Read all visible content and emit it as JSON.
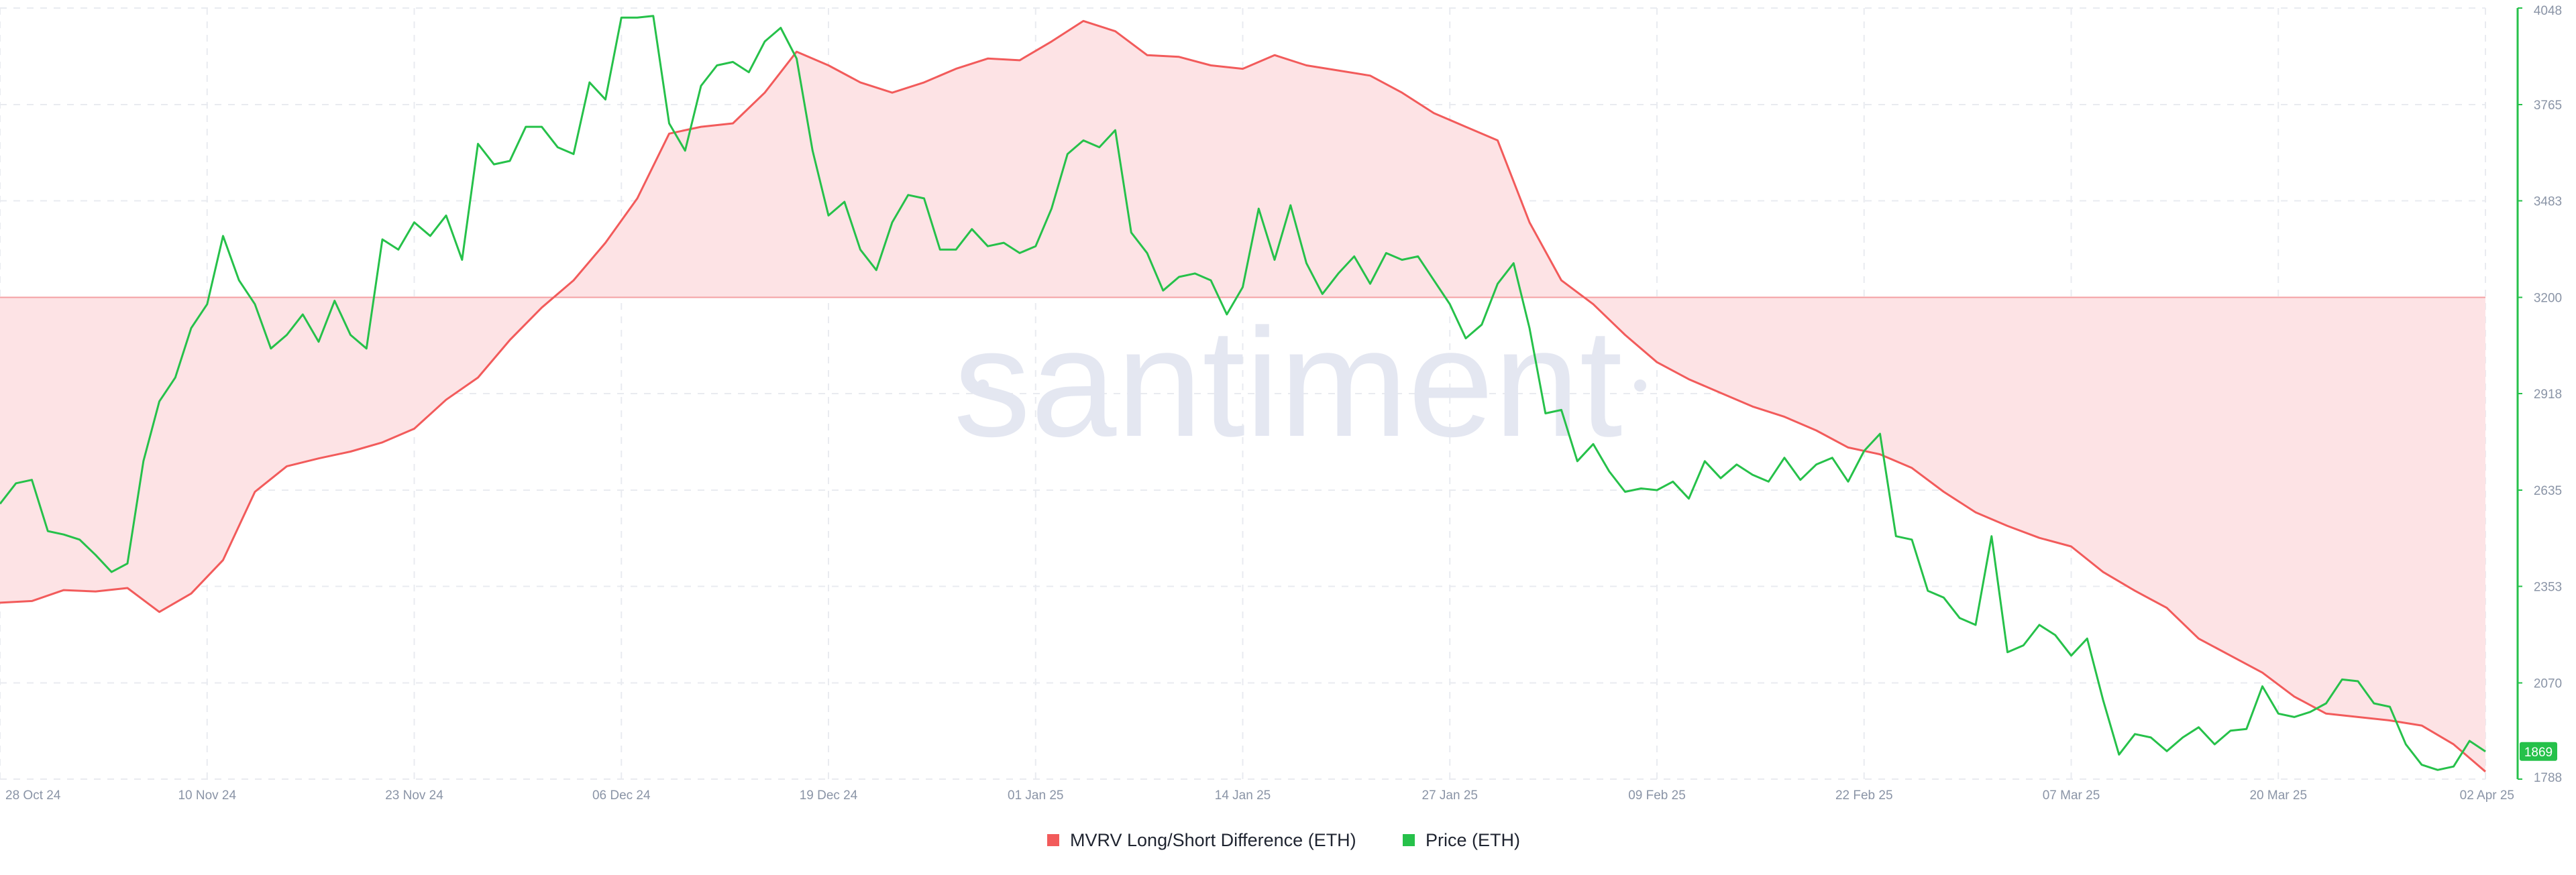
{
  "watermark": "santiment",
  "chart_data": {
    "type": "line",
    "title": "",
    "xlabel": "",
    "ylabel": "",
    "x_ticks": [
      "28 Oct 24",
      "10 Nov 24",
      "23 Nov 24",
      "06 Dec 24",
      "19 Dec 24",
      "01 Jan 25",
      "14 Jan 25",
      "27 Jan 25",
      "09 Feb 25",
      "22 Feb 25",
      "07 Mar 25",
      "20 Mar 25",
      "02 Apr 25"
    ],
    "x_range": [
      "2024-10-28",
      "2025-04-02"
    ],
    "price_axis": {
      "ticks": [
        1788,
        2070,
        2353,
        2635,
        2918,
        3200,
        3483,
        3765,
        4048
      ],
      "ylim": [
        1788,
        4048
      ]
    },
    "current_price_label": "1869",
    "legend_position": "bottom-center",
    "grid": true,
    "series": [
      {
        "name": "MVRV Long/Short Difference (ETH)",
        "color": "#f25b5b",
        "fill": "#fde3e5",
        "baseline": 3200,
        "values": [
          [
            "2024-10-28",
            2305
          ],
          [
            "2024-10-30",
            2310
          ],
          [
            "2024-11-01",
            2342
          ],
          [
            "2024-11-03",
            2338
          ],
          [
            "2024-11-05",
            2348
          ],
          [
            "2024-11-07",
            2278
          ],
          [
            "2024-11-09",
            2332
          ],
          [
            "2024-11-11",
            2430
          ],
          [
            "2024-11-13",
            2630
          ],
          [
            "2024-11-15",
            2705
          ],
          [
            "2024-11-17",
            2728
          ],
          [
            "2024-11-19",
            2748
          ],
          [
            "2024-11-21",
            2775
          ],
          [
            "2024-11-23",
            2815
          ],
          [
            "2024-11-25",
            2900
          ],
          [
            "2024-11-27",
            2965
          ],
          [
            "2024-11-29",
            3075
          ],
          [
            "2024-12-01",
            3170
          ],
          [
            "2024-12-03",
            3250
          ],
          [
            "2024-12-05",
            3360
          ],
          [
            "2024-12-07",
            3490
          ],
          [
            "2024-12-09",
            3680
          ],
          [
            "2024-12-11",
            3700
          ],
          [
            "2024-12-13",
            3710
          ],
          [
            "2024-12-15",
            3800
          ],
          [
            "2024-12-17",
            3920
          ],
          [
            "2024-12-19",
            3880
          ],
          [
            "2024-12-21",
            3830
          ],
          [
            "2024-12-23",
            3800
          ],
          [
            "2024-12-25",
            3830
          ],
          [
            "2024-12-27",
            3870
          ],
          [
            "2024-12-29",
            3900
          ],
          [
            "2024-12-31",
            3895
          ],
          [
            "2025-01-02",
            3950
          ],
          [
            "2025-01-04",
            4010
          ],
          [
            "2025-01-06",
            3980
          ],
          [
            "2025-01-08",
            3910
          ],
          [
            "2025-01-10",
            3905
          ],
          [
            "2025-01-12",
            3880
          ],
          [
            "2025-01-14",
            3870
          ],
          [
            "2025-01-16",
            3910
          ],
          [
            "2025-01-18",
            3880
          ],
          [
            "2025-01-20",
            3865
          ],
          [
            "2025-01-22",
            3850
          ],
          [
            "2025-01-24",
            3800
          ],
          [
            "2025-01-26",
            3740
          ],
          [
            "2025-01-28",
            3700
          ],
          [
            "2025-01-30",
            3660
          ],
          [
            "2025-02-01",
            3420
          ],
          [
            "2025-02-03",
            3250
          ],
          [
            "2025-02-05",
            3180
          ],
          [
            "2025-02-07",
            3090
          ],
          [
            "2025-02-09",
            3010
          ],
          [
            "2025-02-11",
            2960
          ],
          [
            "2025-02-13",
            2920
          ],
          [
            "2025-02-15",
            2880
          ],
          [
            "2025-02-17",
            2850
          ],
          [
            "2025-02-19",
            2810
          ],
          [
            "2025-02-21",
            2760
          ],
          [
            "2025-02-23",
            2740
          ],
          [
            "2025-02-25",
            2700
          ],
          [
            "2025-02-27",
            2630
          ],
          [
            "2025-03-01",
            2570
          ],
          [
            "2025-03-03",
            2530
          ],
          [
            "2025-03-05",
            2495
          ],
          [
            "2025-03-07",
            2470
          ],
          [
            "2025-03-09",
            2395
          ],
          [
            "2025-03-11",
            2340
          ],
          [
            "2025-03-13",
            2290
          ],
          [
            "2025-03-15",
            2200
          ],
          [
            "2025-03-17",
            2150
          ],
          [
            "2025-03-19",
            2100
          ],
          [
            "2025-03-21",
            2030
          ],
          [
            "2025-03-23",
            1980
          ],
          [
            "2025-03-25",
            1970
          ],
          [
            "2025-03-27",
            1960
          ],
          [
            "2025-03-29",
            1945
          ],
          [
            "2025-03-31",
            1890
          ],
          [
            "2025-04-02",
            1810
          ]
        ]
      },
      {
        "name": "Price (ETH)",
        "color": "#26c14a",
        "values": [
          [
            "2024-10-28",
            2595
          ],
          [
            "2024-10-29",
            2655
          ],
          [
            "2024-10-30",
            2665
          ],
          [
            "2024-10-31",
            2515
          ],
          [
            "2024-11-01",
            2505
          ],
          [
            "2024-11-02",
            2490
          ],
          [
            "2024-11-03",
            2445
          ],
          [
            "2024-11-04",
            2395
          ],
          [
            "2024-11-05",
            2420
          ],
          [
            "2024-11-06",
            2720
          ],
          [
            "2024-11-07",
            2895
          ],
          [
            "2024-11-08",
            2965
          ],
          [
            "2024-11-09",
            3110
          ],
          [
            "2024-11-10",
            3180
          ],
          [
            "2024-11-11",
            3380
          ],
          [
            "2024-11-12",
            3250
          ],
          [
            "2024-11-13",
            3180
          ],
          [
            "2024-11-14",
            3050
          ],
          [
            "2024-11-15",
            3090
          ],
          [
            "2024-11-16",
            3150
          ],
          [
            "2024-11-17",
            3070
          ],
          [
            "2024-11-18",
            3190
          ],
          [
            "2024-11-19",
            3090
          ],
          [
            "2024-11-20",
            3050
          ],
          [
            "2024-11-21",
            3370
          ],
          [
            "2024-11-22",
            3340
          ],
          [
            "2024-11-23",
            3420
          ],
          [
            "2024-11-24",
            3380
          ],
          [
            "2024-11-25",
            3440
          ],
          [
            "2024-11-26",
            3310
          ],
          [
            "2024-11-27",
            3650
          ],
          [
            "2024-11-28",
            3590
          ],
          [
            "2024-11-29",
            3600
          ],
          [
            "2024-11-30",
            3700
          ],
          [
            "2024-12-01",
            3700
          ],
          [
            "2024-12-02",
            3640
          ],
          [
            "2024-12-03",
            3620
          ],
          [
            "2024-12-04",
            3830
          ],
          [
            "2024-12-05",
            3780
          ],
          [
            "2024-12-06",
            4020
          ],
          [
            "2024-12-07",
            4020
          ],
          [
            "2024-12-08",
            4025
          ],
          [
            "2024-12-09",
            3710
          ],
          [
            "2024-12-10",
            3630
          ],
          [
            "2024-12-11",
            3820
          ],
          [
            "2024-12-12",
            3880
          ],
          [
            "2024-12-13",
            3890
          ],
          [
            "2024-12-14",
            3860
          ],
          [
            "2024-12-15",
            3950
          ],
          [
            "2024-12-16",
            3990
          ],
          [
            "2024-12-17",
            3900
          ],
          [
            "2024-12-18",
            3630
          ],
          [
            "2024-12-19",
            3440
          ],
          [
            "2024-12-20",
            3480
          ],
          [
            "2024-12-21",
            3340
          ],
          [
            "2024-12-22",
            3280
          ],
          [
            "2024-12-23",
            3420
          ],
          [
            "2024-12-24",
            3500
          ],
          [
            "2024-12-25",
            3490
          ],
          [
            "2024-12-26",
            3340
          ],
          [
            "2024-12-27",
            3340
          ],
          [
            "2024-12-28",
            3400
          ],
          [
            "2024-12-29",
            3350
          ],
          [
            "2024-12-30",
            3360
          ],
          [
            "2024-12-31",
            3330
          ],
          [
            "2025-01-01",
            3350
          ],
          [
            "2025-01-02",
            3460
          ],
          [
            "2025-01-03",
            3620
          ],
          [
            "2025-01-04",
            3660
          ],
          [
            "2025-01-05",
            3640
          ],
          [
            "2025-01-06",
            3690
          ],
          [
            "2025-01-07",
            3390
          ],
          [
            "2025-01-08",
            3330
          ],
          [
            "2025-01-09",
            3220
          ],
          [
            "2025-01-10",
            3260
          ],
          [
            "2025-01-11",
            3270
          ],
          [
            "2025-01-12",
            3250
          ],
          [
            "2025-01-13",
            3150
          ],
          [
            "2025-01-14",
            3230
          ],
          [
            "2025-01-15",
            3460
          ],
          [
            "2025-01-16",
            3310
          ],
          [
            "2025-01-17",
            3470
          ],
          [
            "2025-01-18",
            3300
          ],
          [
            "2025-01-19",
            3210
          ],
          [
            "2025-01-20",
            3270
          ],
          [
            "2025-01-21",
            3320
          ],
          [
            "2025-01-22",
            3240
          ],
          [
            "2025-01-23",
            3330
          ],
          [
            "2025-01-24",
            3310
          ],
          [
            "2025-01-25",
            3320
          ],
          [
            "2025-01-26",
            3250
          ],
          [
            "2025-01-27",
            3180
          ],
          [
            "2025-01-28",
            3080
          ],
          [
            "2025-01-29",
            3120
          ],
          [
            "2025-01-30",
            3240
          ],
          [
            "2025-01-31",
            3300
          ],
          [
            "2025-02-01",
            3110
          ],
          [
            "2025-02-02",
            2860
          ],
          [
            "2025-02-03",
            2870
          ],
          [
            "2025-02-04",
            2720
          ],
          [
            "2025-02-05",
            2770
          ],
          [
            "2025-02-06",
            2690
          ],
          [
            "2025-02-07",
            2630
          ],
          [
            "2025-02-08",
            2640
          ],
          [
            "2025-02-09",
            2635
          ],
          [
            "2025-02-10",
            2660
          ],
          [
            "2025-02-11",
            2610
          ],
          [
            "2025-02-12",
            2720
          ],
          [
            "2025-02-13",
            2670
          ],
          [
            "2025-02-14",
            2710
          ],
          [
            "2025-02-15",
            2680
          ],
          [
            "2025-02-16",
            2660
          ],
          [
            "2025-02-17",
            2730
          ],
          [
            "2025-02-18",
            2665
          ],
          [
            "2025-02-19",
            2710
          ],
          [
            "2025-02-20",
            2730
          ],
          [
            "2025-02-21",
            2660
          ],
          [
            "2025-02-22",
            2750
          ],
          [
            "2025-02-23",
            2800
          ],
          [
            "2025-02-24",
            2500
          ],
          [
            "2025-02-25",
            2490
          ],
          [
            "2025-02-26",
            2340
          ],
          [
            "2025-02-27",
            2320
          ],
          [
            "2025-02-28",
            2260
          ],
          [
            "2025-03-01",
            2240
          ],
          [
            "2025-03-02",
            2500
          ],
          [
            "2025-03-03",
            2160
          ],
          [
            "2025-03-04",
            2180
          ],
          [
            "2025-03-05",
            2240
          ],
          [
            "2025-03-06",
            2210
          ],
          [
            "2025-03-07",
            2150
          ],
          [
            "2025-03-08",
            2200
          ],
          [
            "2025-03-09",
            2020
          ],
          [
            "2025-03-10",
            1860
          ],
          [
            "2025-03-11",
            1920
          ],
          [
            "2025-03-12",
            1910
          ],
          [
            "2025-03-13",
            1870
          ],
          [
            "2025-03-14",
            1910
          ],
          [
            "2025-03-15",
            1940
          ],
          [
            "2025-03-16",
            1890
          ],
          [
            "2025-03-17",
            1930
          ],
          [
            "2025-03-18",
            1935
          ],
          [
            "2025-03-19",
            2060
          ],
          [
            "2025-03-20",
            1980
          ],
          [
            "2025-03-21",
            1970
          ],
          [
            "2025-03-22",
            1985
          ],
          [
            "2025-03-23",
            2010
          ],
          [
            "2025-03-24",
            2080
          ],
          [
            "2025-03-25",
            2075
          ],
          [
            "2025-03-26",
            2010
          ],
          [
            "2025-03-27",
            2000
          ],
          [
            "2025-03-28",
            1890
          ],
          [
            "2025-03-29",
            1830
          ],
          [
            "2025-03-30",
            1815
          ],
          [
            "2025-03-31",
            1825
          ],
          [
            "2025-04-01",
            1900
          ],
          [
            "2025-04-02",
            1869
          ]
        ]
      }
    ]
  }
}
